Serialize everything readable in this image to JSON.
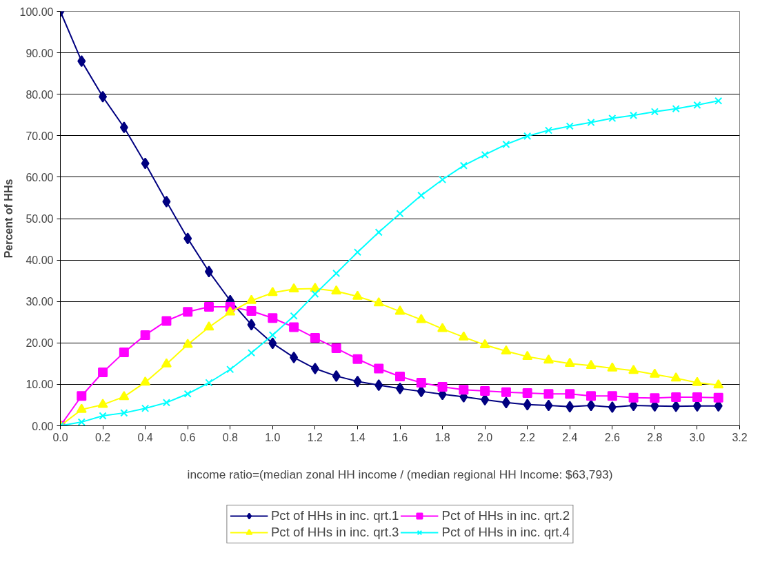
{
  "chart_data": {
    "type": "line",
    "xlabel": "income ratio=(median zonal HH income / (median regional HH Income: $63,793)",
    "ylabel": "Percent of HHs",
    "x": [
      0,
      0.1,
      0.2,
      0.3,
      0.4,
      0.5,
      0.6,
      0.7,
      0.8,
      0.9,
      1.0,
      1.1,
      1.2,
      1.3,
      1.4,
      1.5,
      1.6,
      1.7,
      1.8,
      1.9,
      2.0,
      2.1,
      2.2,
      2.3,
      2.4,
      2.5,
      2.6,
      2.7,
      2.8,
      2.9,
      3.0,
      3.1
    ],
    "xlim": [
      0,
      3.2
    ],
    "xticks": [
      {
        "value": 0,
        "label": "0.0"
      },
      {
        "value": 0.2,
        "label": "0.2"
      },
      {
        "value": 0.4,
        "label": "0.4"
      },
      {
        "value": 0.6,
        "label": "0.6"
      },
      {
        "value": 0.8,
        "label": "0.8"
      },
      {
        "value": 1.0,
        "label": "1.0"
      },
      {
        "value": 1.2,
        "label": "1.2"
      },
      {
        "value": 1.4,
        "label": "1.4"
      },
      {
        "value": 1.6,
        "label": "1.6"
      },
      {
        "value": 1.8,
        "label": "1.8"
      },
      {
        "value": 2.0,
        "label": "2.0"
      },
      {
        "value": 2.2,
        "label": "2.2"
      },
      {
        "value": 2.4,
        "label": "2.4"
      },
      {
        "value": 2.6,
        "label": "2.6"
      },
      {
        "value": 2.8,
        "label": "2.8"
      },
      {
        "value": 3.0,
        "label": "3.0"
      },
      {
        "value": 3.2,
        "label": "3.2"
      }
    ],
    "ylim": [
      0,
      100
    ],
    "yticks": [
      {
        "value": 0,
        "label": "0.00"
      },
      {
        "value": 10,
        "label": "10.00"
      },
      {
        "value": 20,
        "label": "20.00"
      },
      {
        "value": 30,
        "label": "30.00"
      },
      {
        "value": 40,
        "label": "40.00"
      },
      {
        "value": 50,
        "label": "50.00"
      },
      {
        "value": 60,
        "label": "60.00"
      },
      {
        "value": 70,
        "label": "70.00"
      },
      {
        "value": 80,
        "label": "80.00"
      },
      {
        "value": 90,
        "label": "90.00"
      },
      {
        "value": 100,
        "label": "100.00"
      }
    ],
    "grid": "y",
    "legend": "bottom",
    "line_style": "solid",
    "series": [
      {
        "name": "Pct of HHs in inc. qrt.1",
        "color": "#000080",
        "marker": "diamond",
        "values": [
          100,
          88,
          79.4,
          72,
          63.3,
          54.1,
          45.2,
          37.2,
          30.2,
          24.4,
          19.9,
          16.5,
          13.8,
          12.0,
          10.7,
          9.8,
          9.0,
          8.3,
          7.6,
          7.0,
          6.3,
          5.6,
          5.1,
          4.9,
          4.6,
          4.9,
          4.5,
          4.9,
          4.8,
          4.7,
          4.8,
          4.8
        ]
      },
      {
        "name": "Pct of HHs in inc. qrt.2",
        "color": "#ff00ff",
        "marker": "square",
        "values": [
          0,
          7.2,
          12.9,
          17.7,
          21.9,
          25.3,
          27.5,
          28.7,
          28.7,
          27.7,
          26.0,
          23.8,
          21.2,
          18.7,
          16.1,
          13.8,
          11.9,
          10.4,
          9.4,
          8.7,
          8.4,
          8.1,
          7.9,
          7.7,
          7.7,
          7.2,
          7.2,
          6.8,
          6.7,
          6.9,
          6.9,
          6.8
        ]
      },
      {
        "name": "Pct of HHs in inc. qrt.3",
        "color": "#ffff00",
        "marker": "triangle",
        "values": [
          0,
          3.9,
          5.1,
          7.0,
          10.5,
          14.9,
          19.6,
          23.8,
          27.4,
          30.2,
          32.1,
          33.0,
          33.1,
          32.5,
          31.2,
          29.6,
          27.6,
          25.6,
          23.4,
          21.4,
          19.5,
          18.0,
          16.7,
          15.8,
          15.0,
          14.5,
          13.9,
          13.3,
          12.4,
          11.5,
          10.4,
          9.8
        ]
      },
      {
        "name": "Pct of HHs in inc. qrt.4",
        "color": "#00ffff",
        "marker": "cross",
        "values": [
          0,
          0.9,
          2.4,
          3.1,
          4.2,
          5.6,
          7.7,
          10.4,
          13.6,
          17.6,
          21.9,
          26.5,
          31.8,
          36.8,
          41.9,
          46.7,
          51.2,
          55.6,
          59.4,
          62.8,
          65.4,
          67.9,
          69.9,
          71.3,
          72.3,
          73.2,
          74.2,
          74.9,
          75.8,
          76.5,
          77.4,
          78.4
        ]
      }
    ]
  }
}
